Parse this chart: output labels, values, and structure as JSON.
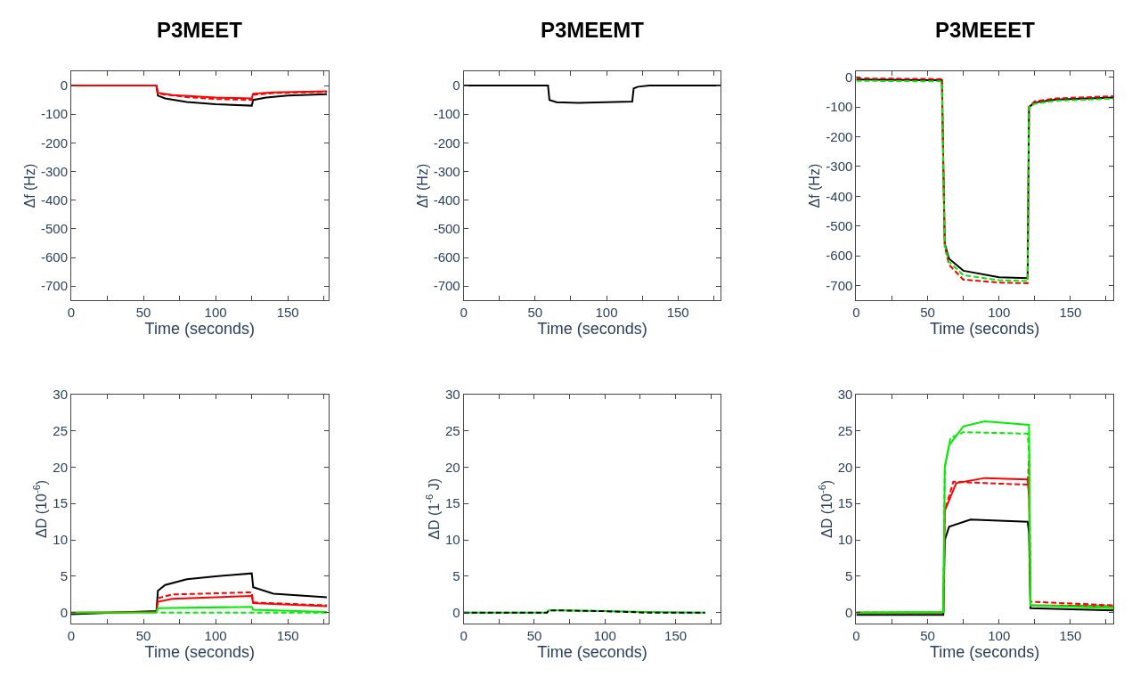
{
  "chart_data": [
    {
      "type": "line",
      "title": "P3MEET",
      "xlabel": "Time (seconds)",
      "ylabel": "Δf (Hz)",
      "xlim": [
        0,
        178
      ],
      "ylim": [
        -750,
        50
      ],
      "xticks": [
        0,
        {
          "value": 25,
          "label": null
        },
        50,
        {
          "value": 75,
          "label": null
        },
        100,
        {
          "value": 125,
          "label": null
        },
        150,
        {
          "value": 175,
          "label": null
        }
      ],
      "yticks": [
        0,
        -100,
        -200,
        -300,
        -400,
        -500,
        -600,
        -700
      ],
      "series": [
        {
          "color": "#000000",
          "line_style": "solid",
          "x": [
            0,
            59,
            60,
            65,
            80,
            100,
            125,
            126,
            135,
            150,
            177
          ],
          "values": [
            0,
            0,
            -35,
            -45,
            -57,
            -65,
            -70,
            -50,
            -42,
            -35,
            -30
          ]
        },
        {
          "color": "#ff0000",
          "line_style": "solid",
          "x": [
            0,
            59,
            60,
            70,
            100,
            125,
            126,
            140,
            177
          ],
          "values": [
            0,
            0,
            -25,
            -33,
            -42,
            -45,
            -28,
            -24,
            -20
          ]
        },
        {
          "color": "#ff0000",
          "line_style": "dashed",
          "x": [
            0,
            59,
            60,
            80,
            100,
            125,
            126,
            140,
            177
          ],
          "values": [
            0,
            0,
            -28,
            -40,
            -47,
            -50,
            -32,
            -26,
            -22
          ]
        }
      ]
    },
    {
      "type": "line",
      "title": "P3MEEMT",
      "xlabel": "Time (seconds)",
      "ylabel": "Δf (Hz)",
      "xlim": [
        0,
        180
      ],
      "ylim": [
        -750,
        50
      ],
      "xticks": [
        0,
        {
          "value": 25,
          "label": null
        },
        50,
        {
          "value": 75,
          "label": null
        },
        100,
        {
          "value": 125,
          "label": null
        },
        150,
        {
          "value": 175,
          "label": null
        }
      ],
      "yticks": [
        0,
        -100,
        -200,
        -300,
        -400,
        -500,
        -600,
        -700
      ],
      "series": [
        {
          "color": "#000000",
          "line_style": "solid",
          "x": [
            0,
            59,
            60,
            65,
            80,
            118,
            119,
            122,
            130,
            180
          ],
          "values": [
            0,
            0,
            -50,
            -58,
            -60,
            -56,
            -10,
            -4,
            0,
            0
          ]
        }
      ]
    },
    {
      "type": "line",
      "title": "P3MEEET",
      "xlabel": "Time (seconds)",
      "ylabel": "Δf (Hz)",
      "xlim": [
        0,
        180
      ],
      "ylim": [
        -750,
        20
      ],
      "xticks": [
        0,
        {
          "value": 25,
          "label": null
        },
        50,
        {
          "value": 75,
          "label": null
        },
        100,
        {
          "value": 125,
          "label": null
        },
        150,
        {
          "value": 175,
          "label": null
        }
      ],
      "yticks": [
        0,
        -100,
        -200,
        -300,
        -400,
        -500,
        -600,
        -700
      ],
      "series": [
        {
          "color": "#000000",
          "line_style": "solid",
          "x": [
            0,
            60,
            61,
            62,
            65,
            75,
            100,
            120,
            121,
            125,
            140,
            180
          ],
          "values": [
            -8,
            -10,
            -300,
            -560,
            -610,
            -650,
            -672,
            -675,
            -100,
            -85,
            -75,
            -68
          ]
        },
        {
          "color": "#ff0000",
          "line_style": "dashed",
          "x": [
            0,
            60,
            61,
            62,
            65,
            75,
            100,
            120,
            121,
            125,
            140,
            180
          ],
          "values": [
            -4,
            -6,
            -300,
            -570,
            -630,
            -680,
            -690,
            -692,
            -100,
            -81,
            -71,
            -64
          ]
        },
        {
          "color": "#00ee00",
          "line_style": "dashed",
          "x": [
            0,
            60,
            61,
            62,
            65,
            75,
            100,
            120,
            121,
            125,
            140,
            180
          ],
          "values": [
            -12,
            -14,
            -300,
            -565,
            -620,
            -665,
            -682,
            -685,
            -100,
            -89,
            -79,
            -72
          ]
        }
      ]
    },
    {
      "type": "line",
      "xlabel": "Time (seconds)",
      "ylabel": "ΔD (10$^{-6}$)",
      "xlim": [
        0,
        178
      ],
      "ylim": [
        -1.5,
        30
      ],
      "xticks": [
        0,
        {
          "value": 25,
          "label": null
        },
        50,
        {
          "value": 75,
          "label": null
        },
        100,
        {
          "value": 125,
          "label": null
        },
        150,
        {
          "value": 175,
          "label": null
        }
      ],
      "yticks": [
        0,
        5,
        10,
        15,
        20,
        25,
        30
      ],
      "series": [
        {
          "color": "#000000",
          "line_style": "solid",
          "x": [
            0,
            59,
            60,
            65,
            80,
            100,
            125,
            126,
            140,
            177
          ],
          "values": [
            -0.2,
            0.2,
            3,
            3.8,
            4.6,
            5,
            5.4,
            3.5,
            2.6,
            2.1
          ]
        },
        {
          "color": "#ff0000",
          "line_style": "solid",
          "x": [
            0,
            59,
            60,
            70,
            100,
            125,
            126,
            177
          ],
          "values": [
            0,
            0.1,
            1.5,
            1.9,
            2.1,
            2.3,
            1.3,
            0.9
          ]
        },
        {
          "color": "#ff0000",
          "line_style": "dashed",
          "x": [
            60,
            70,
            125,
            126,
            177
          ],
          "values": [
            2,
            2.5,
            2.8,
            1.4,
            1
          ]
        },
        {
          "color": "#00ee00",
          "line_style": "solid",
          "x": [
            0,
            59,
            60,
            125,
            126,
            177
          ],
          "values": [
            0,
            0,
            0.6,
            0.8,
            0.4,
            0.1
          ]
        },
        {
          "color": "#00ee00",
          "line_style": "dashed",
          "x": [
            62,
            177
          ],
          "values": [
            0,
            0
          ]
        }
      ]
    },
    {
      "type": "line",
      "xlabel": "Time (seconds)",
      "ylabel": "ΔD (1$^{-6}$ J)",
      "xlim": [
        0,
        182
      ],
      "ylim": [
        -1.5,
        30
      ],
      "xticks": [
        0,
        {
          "value": 25,
          "label": null
        },
        50,
        {
          "value": 75,
          "label": null
        },
        100,
        {
          "value": 125,
          "label": null
        },
        150,
        {
          "value": 175,
          "label": null
        }
      ],
      "yticks": [
        0,
        5,
        10,
        15,
        20,
        25,
        30
      ],
      "series": [
        {
          "color": "#00ee00",
          "line_style": "solid",
          "x": [
            0,
            59,
            60,
            70,
            100,
            130,
            170
          ],
          "values": [
            0,
            0,
            0.3,
            0.3,
            0.2,
            0.1,
            0
          ]
        },
        {
          "color": "#000000",
          "line_style": "dashed",
          "x": [
            0,
            59,
            60,
            70,
            100,
            130,
            171
          ],
          "values": [
            0,
            0,
            0.3,
            0.3,
            0.2,
            0,
            0
          ]
        }
      ]
    },
    {
      "type": "line",
      "xlabel": "Time (seconds)",
      "ylabel": "ΔD (10$^{-6}$)",
      "xlim": [
        0,
        180
      ],
      "ylim": [
        -1.5,
        30
      ],
      "xticks": [
        0,
        {
          "value": 25,
          "label": null
        },
        50,
        {
          "value": 75,
          "label": null
        },
        100,
        {
          "value": 125,
          "label": null
        },
        150,
        {
          "value": 175,
          "label": null
        }
      ],
      "yticks": [
        0,
        5,
        10,
        15,
        20,
        25,
        30
      ],
      "series": [
        {
          "color": "#000000",
          "line_style": "solid",
          "x": [
            0,
            61,
            62,
            65,
            80,
            120,
            121,
            122,
            180
          ],
          "values": [
            -0.3,
            -0.3,
            10,
            11.8,
            12.8,
            12.5,
            11,
            0.6,
            0.3
          ]
        },
        {
          "color": "#ff0000",
          "line_style": "solid",
          "x": [
            0,
            61,
            62,
            70,
            90,
            120,
            121,
            122,
            180
          ],
          "values": [
            0,
            0,
            14,
            17.8,
            18.5,
            18.3,
            16,
            1,
            0.9
          ]
        },
        {
          "color": "#ff0000",
          "line_style": "dashed",
          "x": [
            0,
            61,
            62,
            68,
            90,
            120,
            121,
            122,
            180
          ],
          "values": [
            0,
            0,
            14,
            18,
            17.8,
            17.6,
            21,
            1.5,
            1
          ]
        },
        {
          "color": "#00ee00",
          "line_style": "dashed",
          "x": [
            0,
            61,
            62,
            66,
            75,
            120,
            121,
            122,
            180
          ],
          "values": [
            0,
            0,
            20,
            24,
            24.8,
            24.6,
            22,
            1,
            0.8
          ]
        },
        {
          "color": "#00ee00",
          "line_style": "solid",
          "x": [
            0,
            61,
            62,
            65,
            75,
            90,
            121,
            122,
            180
          ],
          "values": [
            0,
            0.1,
            20,
            23,
            25.6,
            26.3,
            25.8,
            1,
            0.6
          ]
        }
      ]
    }
  ]
}
